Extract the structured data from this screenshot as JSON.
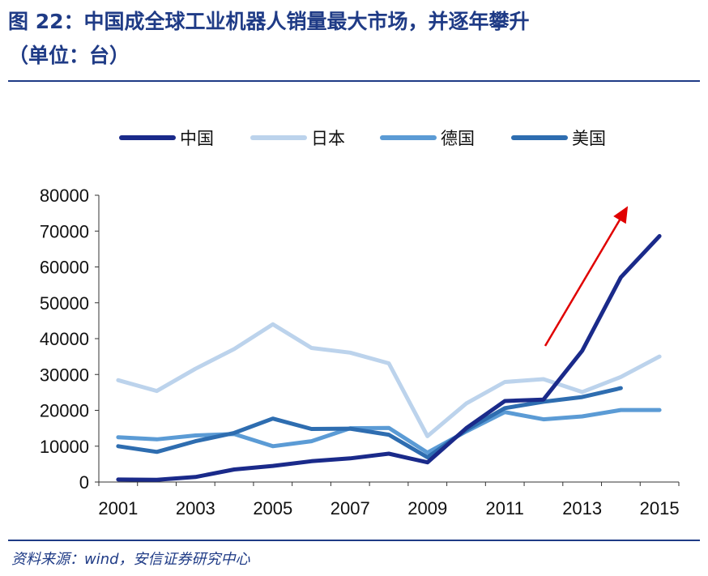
{
  "header": {
    "title_line1": "图 22：中国成全球工业机器人销量最大市场，并逐年攀升",
    "title_line2": "（单位：台）"
  },
  "footer": {
    "source": "资料来源：wind，安信证券研究中心"
  },
  "chart_data": {
    "type": "line",
    "title": "中国成全球工业机器人销量最大市场，并逐年攀升",
    "unit": "台",
    "x": [
      2001,
      2002,
      2003,
      2004,
      2005,
      2006,
      2007,
      2008,
      2009,
      2010,
      2011,
      2012,
      2013,
      2014,
      2015
    ],
    "x_tick_labels": [
      "2001",
      "2003",
      "2005",
      "2007",
      "2009",
      "2011",
      "2013",
      "2015"
    ],
    "x_tick_values": [
      2001,
      2003,
      2005,
      2007,
      2009,
      2011,
      2013,
      2015
    ],
    "ylim": [
      0,
      80000
    ],
    "y_ticks": [
      0,
      10000,
      20000,
      30000,
      40000,
      50000,
      60000,
      70000,
      80000
    ],
    "grid": false,
    "legend_position": "top",
    "series": [
      {
        "name": "中国",
        "color": "#1a2a8a",
        "values": [
          700,
          600,
          1400,
          3500,
          4500,
          5800,
          6600,
          7900,
          5500,
          15000,
          22600,
          23000,
          36600,
          57100,
          68600
        ]
      },
      {
        "name": "日本",
        "color": "#bcd3ec",
        "values": [
          28400,
          25400,
          31600,
          37100,
          44000,
          37400,
          36100,
          33100,
          12800,
          21900,
          27900,
          28700,
          25100,
          29300,
          35000
        ]
      },
      {
        "name": "德国",
        "color": "#5b9bd5",
        "values": [
          12500,
          11900,
          13000,
          13400,
          10000,
          11400,
          15000,
          15100,
          8200,
          14100,
          19500,
          17500,
          18300,
          20100,
          20100
        ]
      },
      {
        "name": "美国",
        "color": "#2e6db0",
        "values": [
          10000,
          8400,
          11400,
          13700,
          17700,
          14800,
          14900,
          13200,
          6900,
          14500,
          20600,
          22400,
          23700,
          26200,
          null
        ]
      }
    ],
    "annotation": {
      "type": "arrow",
      "color": "#e00000",
      "meaning": "rising trend"
    }
  }
}
